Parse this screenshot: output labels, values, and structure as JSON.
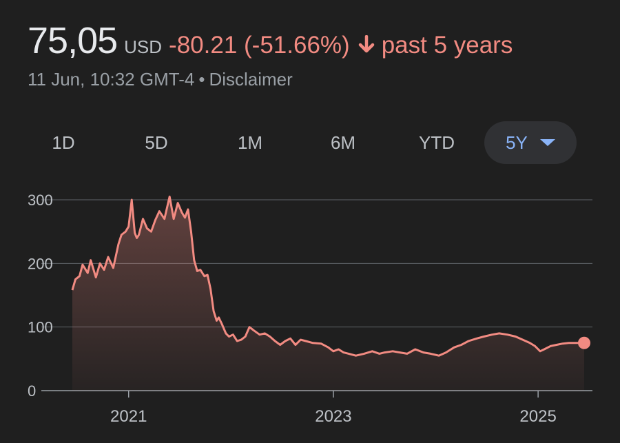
{
  "quote": {
    "price": "75,05",
    "currency": "USD",
    "change": "-80.21 (-51.66%)",
    "direction_icon": "arrow-down-icon",
    "period": "past 5 years",
    "timestamp": "11 Jun, 10:32 GMT-4",
    "separator": "•",
    "disclaimer_label": "Disclaimer"
  },
  "range_tabs": [
    {
      "label": "1D",
      "active": false
    },
    {
      "label": "5D",
      "active": false
    },
    {
      "label": "1M",
      "active": false
    },
    {
      "label": "6M",
      "active": false
    },
    {
      "label": "YTD",
      "active": false
    },
    {
      "label": "5Y",
      "active": true
    }
  ],
  "colors": {
    "background": "#1f1f1f",
    "line": "#f28b82",
    "accent": "#8ab4f8",
    "grid": "#5f6368"
  },
  "chart_data": {
    "type": "area",
    "ylim": [
      0,
      300
    ],
    "yticks": [
      0,
      100,
      200,
      300
    ],
    "xlim": [
      2020.45,
      2025.45
    ],
    "xticks": [
      2021,
      2023,
      2025
    ],
    "xtick_labels": [
      "2021",
      "2023",
      "2025"
    ],
    "grid": true,
    "series": [
      {
        "x": [
          2020.45,
          2020.48,
          2020.52,
          2020.55,
          2020.6,
          2020.63,
          2020.68,
          2020.72,
          2020.76,
          2020.8,
          2020.85,
          2020.9,
          2020.93,
          2020.97,
          2021.0,
          2021.03,
          2021.06,
          2021.08,
          2021.1,
          2021.14,
          2021.18,
          2021.22,
          2021.26,
          2021.3,
          2021.35,
          2021.4,
          2021.44,
          2021.48,
          2021.52,
          2021.55,
          2021.58,
          2021.61,
          2021.64,
          2021.67,
          2021.7,
          2021.74,
          2021.77,
          2021.8,
          2021.83,
          2021.86,
          2021.88,
          2021.91,
          2021.95,
          2021.98,
          2022.02,
          2022.06,
          2022.1,
          2022.14,
          2022.18,
          2022.22,
          2022.28,
          2022.33,
          2022.38,
          2022.43,
          2022.48,
          2022.53,
          2022.58,
          2022.63,
          2022.68,
          2022.73,
          2022.8,
          2022.88,
          2022.95,
          2023.0,
          2023.05,
          2023.1,
          2023.15,
          2023.22,
          2023.3,
          2023.38,
          2023.45,
          2023.5,
          2023.58,
          2023.65,
          2023.72,
          2023.8,
          2023.88,
          2023.95,
          2024.03,
          2024.1,
          2024.18,
          2024.25,
          2024.32,
          2024.4,
          2024.47,
          2024.55,
          2024.62,
          2024.7,
          2024.78,
          2024.85,
          2024.92,
          2024.97,
          2025.02,
          2025.06,
          2025.12,
          2025.18,
          2025.24,
          2025.3,
          2025.38,
          2025.45
        ],
        "y": [
          158,
          175,
          180,
          198,
          185,
          205,
          178,
          200,
          190,
          210,
          193,
          230,
          245,
          250,
          258,
          300,
          248,
          240,
          245,
          270,
          255,
          250,
          268,
          282,
          270,
          305,
          270,
          295,
          280,
          272,
          285,
          250,
          205,
          188,
          190,
          180,
          182,
          160,
          125,
          110,
          115,
          105,
          90,
          85,
          88,
          78,
          80,
          85,
          100,
          95,
          88,
          90,
          85,
          78,
          72,
          78,
          82,
          72,
          80,
          78,
          75,
          74,
          68,
          62,
          65,
          60,
          58,
          55,
          58,
          62,
          58,
          60,
          62,
          60,
          58,
          65,
          60,
          58,
          55,
          60,
          68,
          72,
          78,
          82,
          85,
          88,
          90,
          88,
          85,
          80,
          75,
          70,
          62,
          65,
          70,
          72,
          74,
          75,
          75,
          75
        ]
      }
    ]
  }
}
